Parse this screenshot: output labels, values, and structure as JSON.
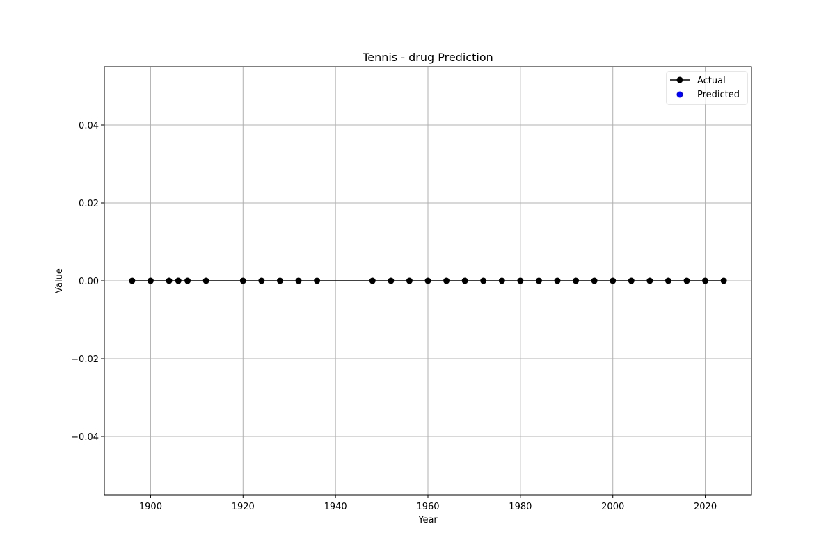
{
  "chart_data": {
    "type": "line",
    "title": "Tennis - drug Prediction",
    "xlabel": "Year",
    "ylabel": "Value",
    "xlim": [
      1890,
      2030
    ],
    "ylim": [
      -0.055,
      0.055
    ],
    "x_ticks": [
      1900,
      1920,
      1940,
      1960,
      1980,
      2000,
      2020
    ],
    "y_ticks": [
      -0.04,
      -0.02,
      0.0,
      0.02,
      0.04
    ],
    "y_tick_labels": [
      "−0.04",
      "−0.02",
      "0.00",
      "0.02",
      "0.04"
    ],
    "grid": true,
    "legend_position": "top-right",
    "series": [
      {
        "name": "Actual",
        "style": "line-marker",
        "color": "#000000",
        "x": [
          1896,
          1900,
          1904,
          1906,
          1908,
          1912,
          1920,
          1924,
          1928,
          1932,
          1936,
          1948,
          1952,
          1956,
          1960,
          1964,
          1968,
          1972,
          1976,
          1980,
          1984,
          1988,
          1992,
          1996,
          2000,
          2004,
          2008,
          2012,
          2016,
          2020,
          2024
        ],
        "y": [
          0,
          0,
          0,
          0,
          0,
          0,
          0,
          0,
          0,
          0,
          0,
          0,
          0,
          0,
          0,
          0,
          0,
          0,
          0,
          0,
          0,
          0,
          0,
          0,
          0,
          0,
          0,
          0,
          0,
          0,
          0
        ]
      },
      {
        "name": "Predicted",
        "style": "scatter",
        "color": "#0000ff",
        "x": [],
        "y": []
      }
    ]
  }
}
